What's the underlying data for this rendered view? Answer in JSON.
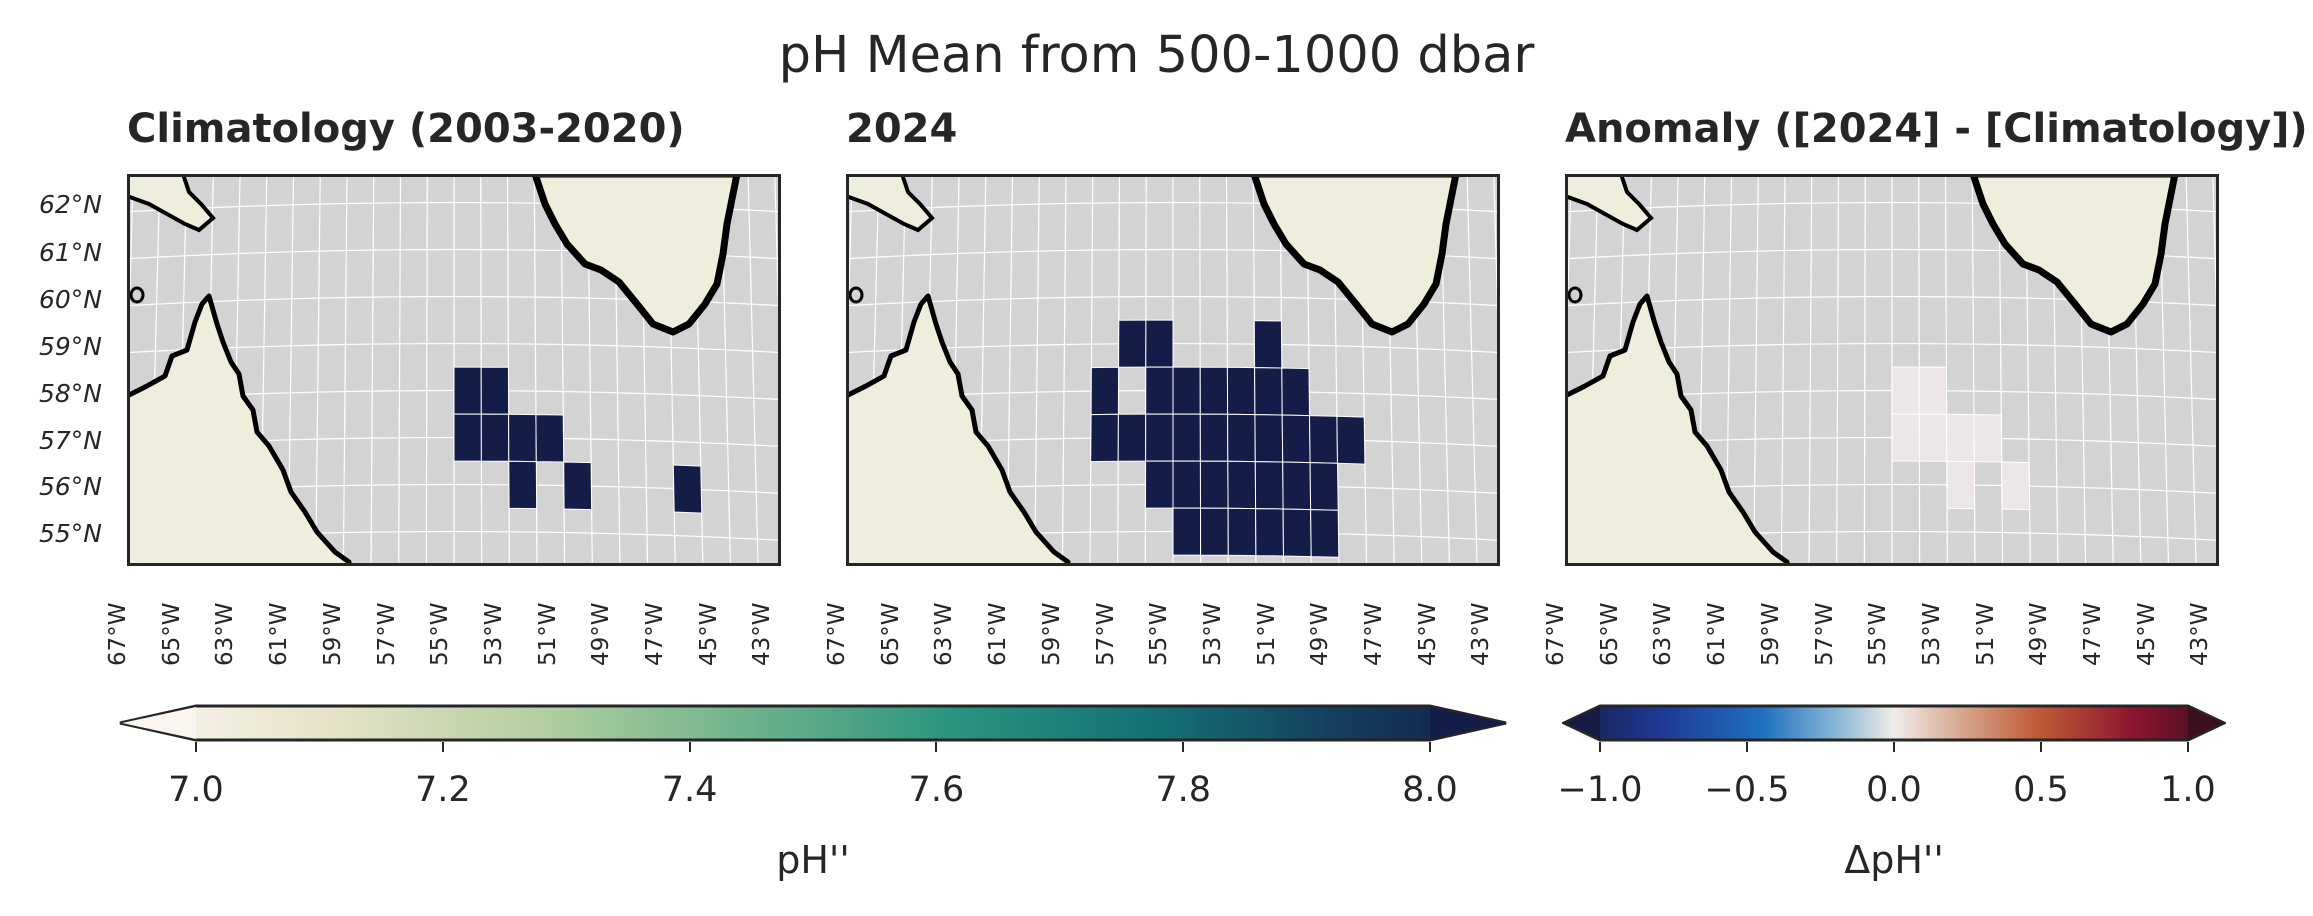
{
  "figure_title": "pH Mean from 500-1000 dbar",
  "panels": [
    {
      "title": "Climatology (2003-2020)",
      "lat_labels": [
        "62°N",
        "61°N",
        "60°N",
        "59°N",
        "58°N",
        "57°N",
        "56°N",
        "55°N"
      ]
    },
    {
      "title": "2024"
    },
    {
      "title": "Anomaly ([2024] - [Climatology])"
    }
  ],
  "lon_labels": [
    "67°W",
    "65°W",
    "63°W",
    "61°W",
    "59°W",
    "57°W",
    "55°W",
    "53°W",
    "51°W",
    "49°W",
    "47°W",
    "45°W",
    "43°W"
  ],
  "colorbars": [
    {
      "label": "pH''",
      "ticks": [
        "7.0",
        "7.2",
        "7.4",
        "7.6",
        "7.8",
        "8.0"
      ],
      "vmin": 7.0,
      "vmax": 8.0,
      "colormap": "white-green-navy"
    },
    {
      "label": "ΔpH''",
      "ticks": [
        "−1.0",
        "−0.5",
        "0.0",
        "0.5",
        "1.0"
      ],
      "vmin": -1.0,
      "vmax": 1.0,
      "colormap": "diverging blue-white-red"
    }
  ],
  "colors": {
    "ocean": "#d3d3d3",
    "land": "#efeedc",
    "coast": "#000000",
    "grid": "#ffffff",
    "ph_cell": "#141c48",
    "anomaly_cell": "#ede6e6"
  },
  "chart_data": [
    {
      "type": "heatmap",
      "title": "Climatology (2003-2020)",
      "xlabel": "",
      "ylabel": "",
      "xlim": [
        -67,
        -43
      ],
      "ylim": [
        55,
        62
      ],
      "cells_lon_lat_value": [
        [
          -54.5,
          58.0,
          7.95
        ],
        [
          -53.5,
          58.0,
          7.95
        ],
        [
          -54.5,
          57.0,
          7.95
        ],
        [
          -53.5,
          57.0,
          7.95
        ],
        [
          -52.5,
          57.0,
          7.95
        ],
        [
          -51.5,
          57.0,
          7.95
        ],
        [
          -52.5,
          56.0,
          7.95
        ],
        [
          -50.5,
          56.0,
          7.95
        ],
        [
          -46.5,
          56.0,
          7.95
        ]
      ]
    },
    {
      "type": "heatmap",
      "title": "2024",
      "xlabel": "",
      "ylabel": "",
      "xlim": [
        -67,
        -43
      ],
      "ylim": [
        55,
        62
      ],
      "cells_lon_lat_value": [
        [
          -56.5,
          59.0,
          7.95
        ],
        [
          -55.5,
          59.0,
          7.95
        ],
        [
          -51.5,
          59.0,
          7.95
        ],
        [
          -57.5,
          58.0,
          7.95
        ],
        [
          -55.5,
          58.0,
          7.95
        ],
        [
          -54.5,
          58.0,
          7.95
        ],
        [
          -53.5,
          58.0,
          7.95
        ],
        [
          -52.5,
          58.0,
          7.95
        ],
        [
          -51.5,
          58.0,
          7.95
        ],
        [
          -50.5,
          58.0,
          7.95
        ],
        [
          -57.5,
          57.0,
          7.95
        ],
        [
          -56.5,
          57.0,
          7.95
        ],
        [
          -55.5,
          57.0,
          7.95
        ],
        [
          -54.5,
          57.0,
          7.95
        ],
        [
          -53.5,
          57.0,
          7.95
        ],
        [
          -52.5,
          57.0,
          7.95
        ],
        [
          -51.5,
          57.0,
          7.95
        ],
        [
          -50.5,
          57.0,
          7.95
        ],
        [
          -49.5,
          57.0,
          7.95
        ],
        [
          -48.5,
          57.0,
          7.95
        ],
        [
          -55.5,
          56.0,
          7.95
        ],
        [
          -54.5,
          56.0,
          7.95
        ],
        [
          -53.5,
          56.0,
          7.95
        ],
        [
          -52.5,
          56.0,
          7.95
        ],
        [
          -51.5,
          56.0,
          7.95
        ],
        [
          -50.5,
          56.0,
          7.95
        ],
        [
          -49.5,
          56.0,
          7.95
        ],
        [
          -54.5,
          55.0,
          7.95
        ],
        [
          -53.5,
          55.0,
          7.95
        ],
        [
          -52.5,
          55.0,
          7.95
        ],
        [
          -51.5,
          55.0,
          7.95
        ],
        [
          -50.5,
          55.0,
          7.95
        ],
        [
          -49.5,
          55.0,
          7.95
        ]
      ]
    },
    {
      "type": "heatmap",
      "title": "Anomaly ([2024] - [Climatology])",
      "xlabel": "",
      "ylabel": "",
      "xlim": [
        -67,
        -43
      ],
      "ylim": [
        55,
        62
      ],
      "cells_lon_lat_value": [
        [
          -54.5,
          58.0,
          0.02
        ],
        [
          -53.5,
          58.0,
          0.02
        ],
        [
          -54.5,
          57.0,
          0.02
        ],
        [
          -53.5,
          57.0,
          0.02
        ],
        [
          -52.5,
          57.0,
          0.02
        ],
        [
          -51.5,
          57.0,
          0.02
        ],
        [
          -52.5,
          56.0,
          0.02
        ],
        [
          -50.5,
          56.0,
          0.02
        ]
      ]
    }
  ]
}
